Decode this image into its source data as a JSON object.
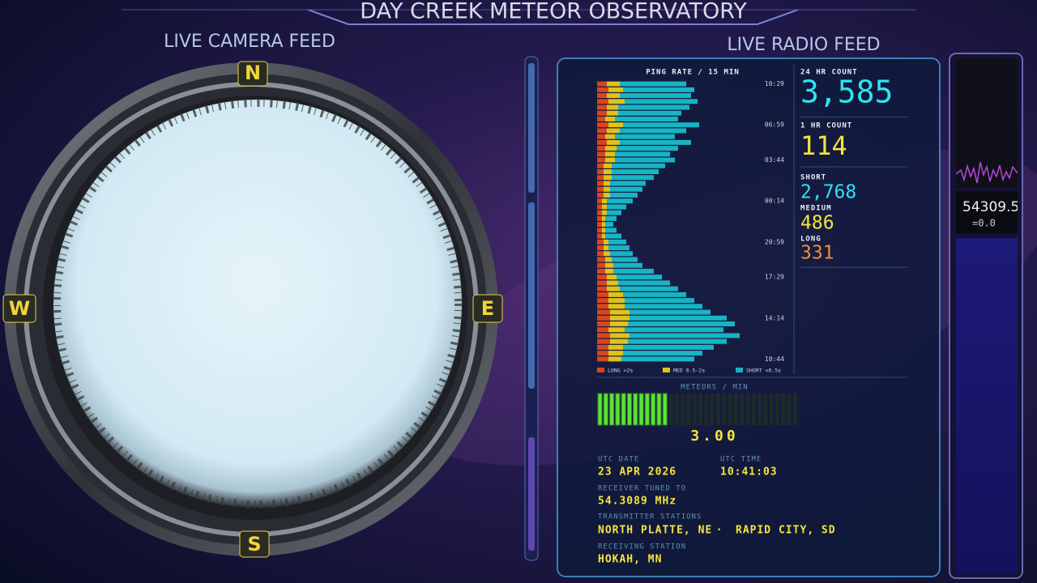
{
  "header": {
    "title": "DAY CREEK METEOR OBSERVATORY"
  },
  "camera": {
    "title": "LIVE CAMERA FEED",
    "compass": {
      "north": "N",
      "east": "E",
      "south": "S",
      "west": "W"
    }
  },
  "radio": {
    "title": "LIVE RADIO FEED",
    "stats": [
      {
        "label": "24 HR COUNT",
        "value": "3,585",
        "color": "#2ee3f2"
      },
      {
        "label": "1 HR COUNT",
        "value": "114",
        "color": "#f6e43c"
      },
      {
        "label": "SHORT",
        "value": "2,768",
        "color": "#2ee3f2"
      },
      {
        "label": "MEDIUM",
        "value": "486",
        "color": "#f6e43c"
      },
      {
        "label": "LONG",
        "value": "331",
        "color": "#eb913b"
      }
    ],
    "meter": {
      "title": "METEORS / MIN",
      "value": "3.00"
    },
    "info": {
      "utc_date_label": "UTC DATE",
      "utc_date": "23 APR 2026",
      "utc_time_label": "UTC TIME",
      "utc_time": "10:41:03",
      "receiver_label": "RECEIVER TUNED TO",
      "receiver": "54.3089 MHz",
      "transmitter_label": "TRANSMITTER STATIONS",
      "transmitters": [
        "NORTH PLATTE, NE",
        "RAPID CITY, SD"
      ],
      "separator": "·",
      "receiving_label": "RECEIVING STATION",
      "receiving": "HOKAH, MN"
    }
  },
  "spectrum": {
    "frequency": "54309.5",
    "offset": "=0.0"
  },
  "chart_data": {
    "type": "bar",
    "orientation": "horizontal",
    "stacked": true,
    "title": "PING RATE / 15 MIN",
    "categories": [
      "10:29",
      null,
      null,
      null,
      null,
      null,
      null,
      "06:59",
      null,
      null,
      null,
      null,
      null,
      "03:44",
      null,
      null,
      null,
      null,
      null,
      null,
      "00:14",
      null,
      null,
      null,
      null,
      null,
      null,
      "20:59",
      null,
      null,
      null,
      null,
      null,
      "17:29",
      null,
      null,
      null,
      null,
      null,
      null,
      "14:14",
      null,
      null,
      null,
      null,
      null,
      null,
      "10:44"
    ],
    "xlim": [
      0,
      100
    ],
    "series": [
      {
        "name": "LONG >2s",
        "color": "#d9461e",
        "values": [
          6,
          7,
          6,
          7,
          6,
          6,
          5,
          7,
          6,
          5,
          6,
          5,
          5,
          5,
          4,
          4,
          4,
          4,
          4,
          4,
          3,
          3,
          3,
          3,
          3,
          3,
          3,
          4,
          4,
          4,
          5,
          5,
          5,
          6,
          6,
          6,
          7,
          7,
          7,
          8,
          8,
          8,
          7,
          8,
          8,
          7,
          7,
          7
        ]
      },
      {
        "name": "MED 0.5-2s",
        "color": "#e0c21a",
        "values": [
          8,
          9,
          8,
          10,
          7,
          7,
          6,
          9,
          8,
          6,
          8,
          7,
          6,
          6,
          5,
          5,
          5,
          4,
          4,
          4,
          3,
          3,
          3,
          2,
          2,
          2,
          2,
          3,
          3,
          4,
          4,
          5,
          5,
          6,
          7,
          8,
          9,
          10,
          10,
          12,
          12,
          11,
          10,
          12,
          11,
          9,
          9,
          8
        ]
      },
      {
        "name": "SHORT <0.5s",
        "color": "#17b4c4",
        "values": [
          41,
          44,
          44,
          45,
          44,
          39,
          39,
          47,
          41,
          37,
          44,
          38,
          34,
          37,
          33,
          29,
          26,
          22,
          20,
          17,
          16,
          12,
          9,
          7,
          5,
          7,
          10,
          11,
          13,
          14,
          16,
          18,
          25,
          28,
          32,
          36,
          39,
          43,
          48,
          50,
          60,
          66,
          61,
          68,
          61,
          56,
          49,
          45
        ]
      }
    ]
  }
}
